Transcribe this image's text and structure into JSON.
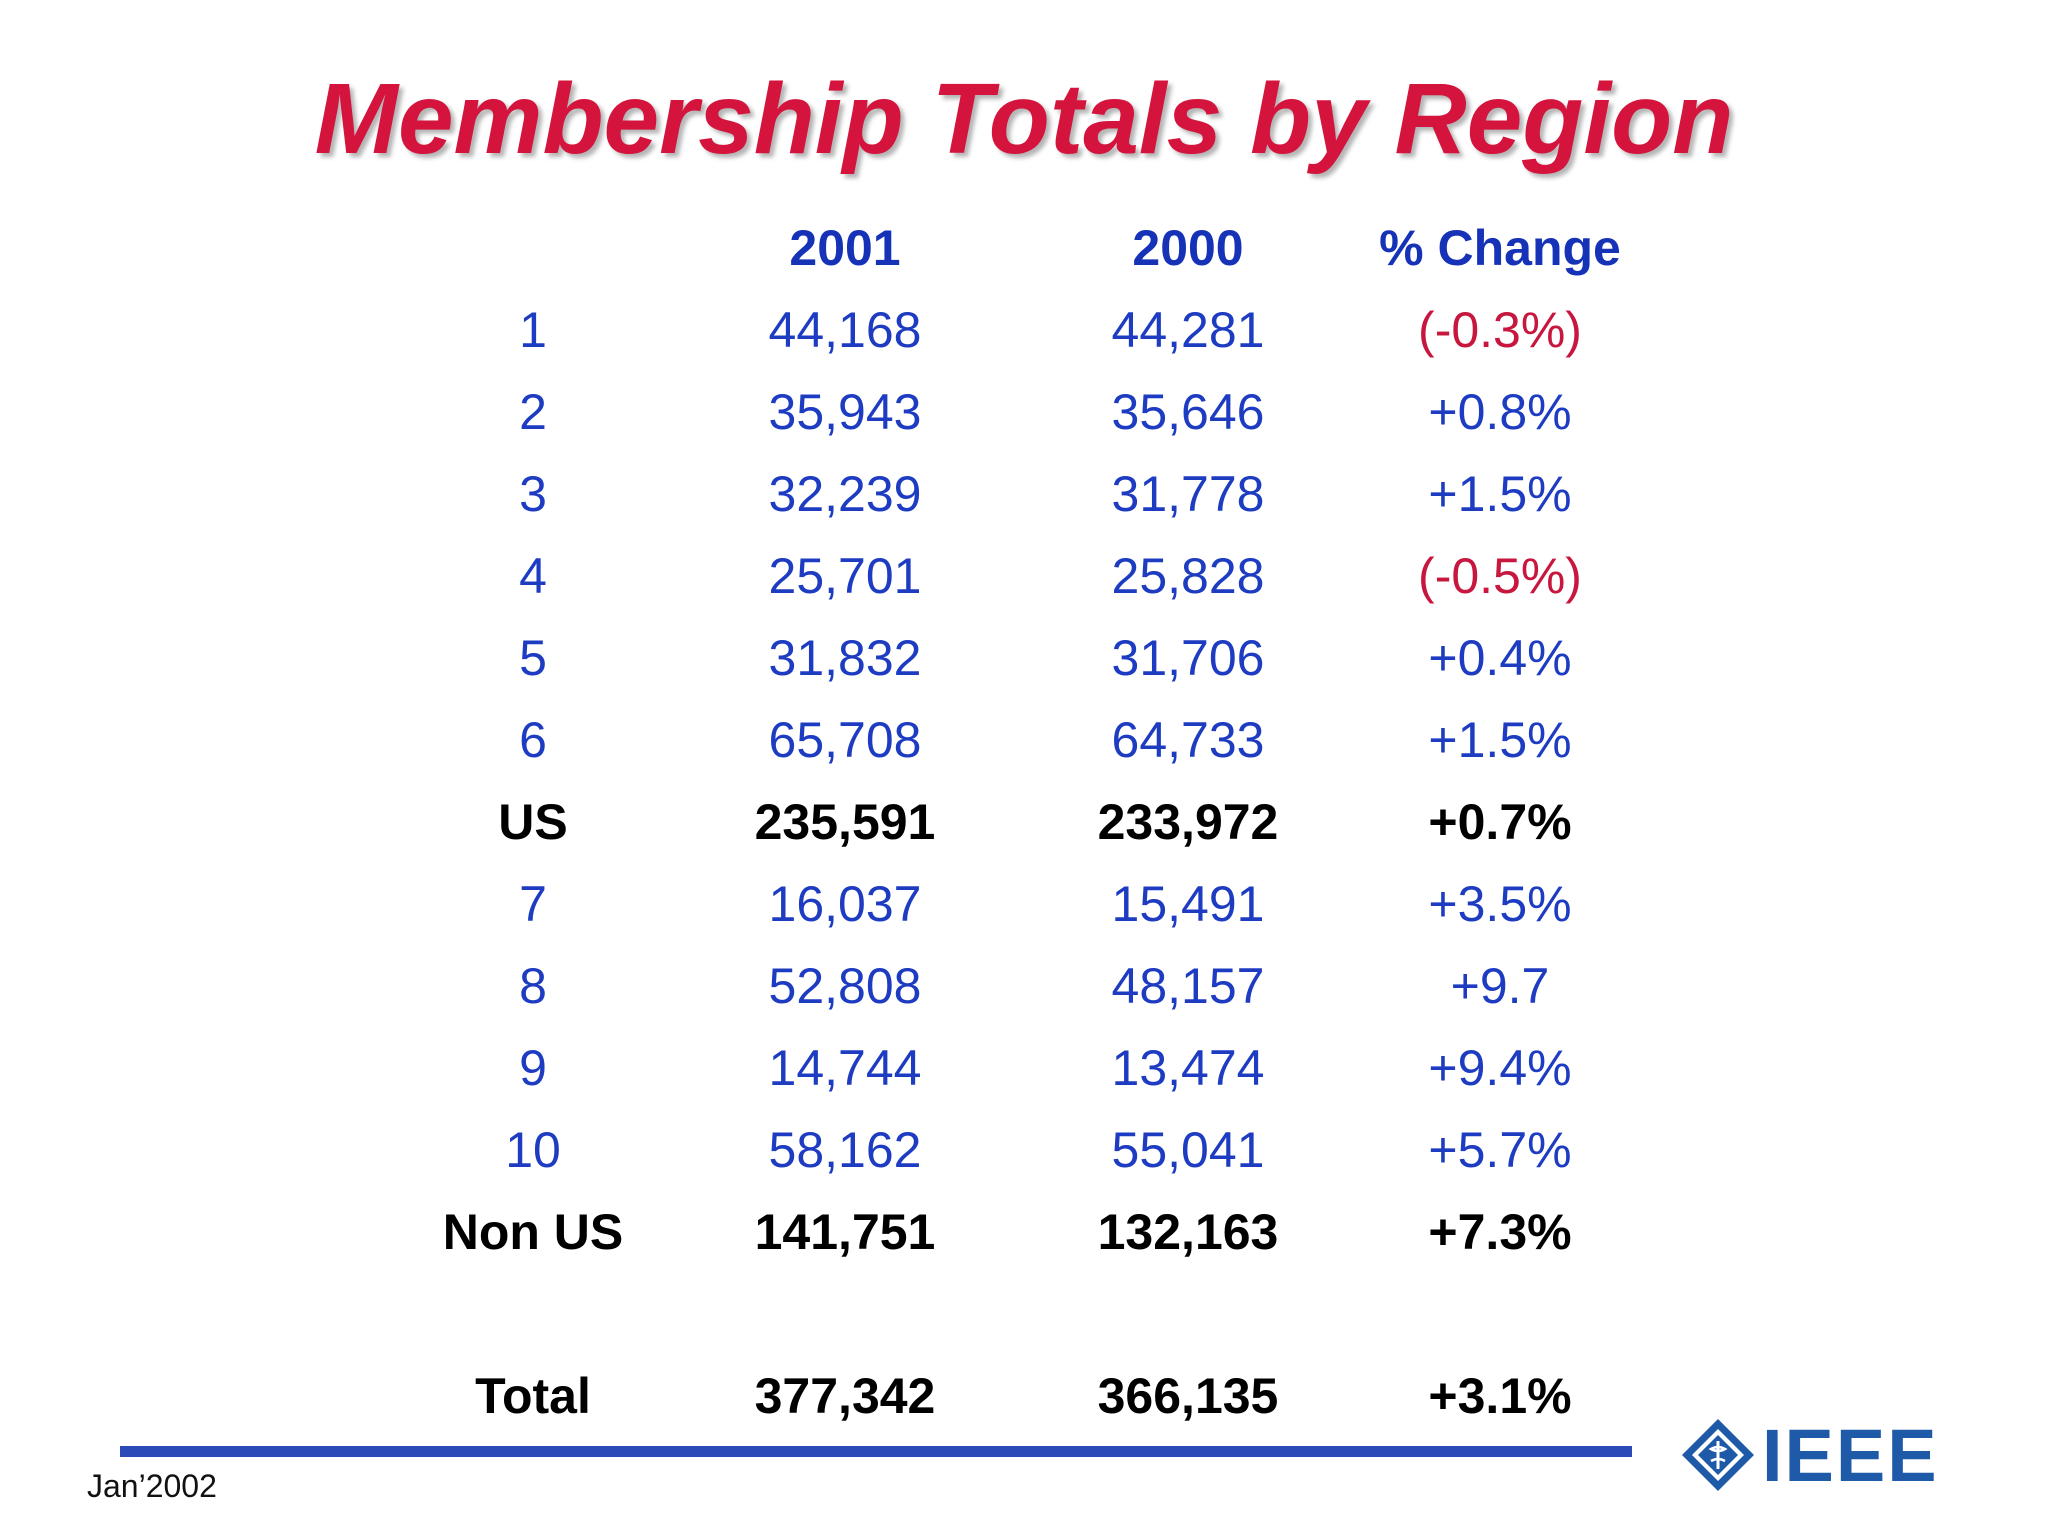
{
  "title": "Membership Totals by Region",
  "colors": {
    "title": "#d4143c",
    "header": "#1633b8",
    "value_blue": "#1e3cc2",
    "negative_red": "#c8173f",
    "subtotal_black": "#000000",
    "rule": "#2c4bb8",
    "logo": "#1f5aa8"
  },
  "table": {
    "headers": [
      "",
      "2001",
      "2000",
      "% Change"
    ],
    "rows": [
      {
        "region": "1",
        "y2001": "44,168",
        "y2000": "44,281",
        "change": "(-0.3%)",
        "style": "blue",
        "change_style": "red"
      },
      {
        "region": "2",
        "y2001": "35,943",
        "y2000": "35,646",
        "change": "+0.8%",
        "style": "blue",
        "change_style": "blue"
      },
      {
        "region": "3",
        "y2001": "32,239",
        "y2000": "31,778",
        "change": "+1.5%",
        "style": "blue",
        "change_style": "blue"
      },
      {
        "region": "4",
        "y2001": "25,701",
        "y2000": "25,828",
        "change": "(-0.5%)",
        "style": "blue",
        "change_style": "red"
      },
      {
        "region": "5",
        "y2001": "31,832",
        "y2000": "31,706",
        "change": "+0.4%",
        "style": "blue",
        "change_style": "blue"
      },
      {
        "region": "6",
        "y2001": "65,708",
        "y2000": "64,733",
        "change": "+1.5%",
        "style": "blue",
        "change_style": "blue"
      },
      {
        "region": "US",
        "y2001": "235,591",
        "y2000": "233,972",
        "change": "+0.7%",
        "style": "bold-black",
        "change_style": "bold-black"
      },
      {
        "region": "7",
        "y2001": "16,037",
        "y2000": "15,491",
        "change": "+3.5%",
        "style": "blue",
        "change_style": "blue"
      },
      {
        "region": "8",
        "y2001": "52,808",
        "y2000": "48,157",
        "change": "+9.7",
        "style": "blue",
        "change_style": "blue"
      },
      {
        "region": "9",
        "y2001": "14,744",
        "y2000": "13,474",
        "change": "+9.4%",
        "style": "blue",
        "change_style": "blue"
      },
      {
        "region": "10",
        "y2001": "58,162",
        "y2000": "55,041",
        "change": "+5.7%",
        "style": "blue",
        "change_style": "blue"
      },
      {
        "region": "Non US",
        "y2001": "141,751",
        "y2000": "132,163",
        "change": "+7.3%",
        "style": "bold-black",
        "change_style": "bold-black"
      },
      {
        "region": "Total",
        "y2001": "377,342",
        "y2000": "366,135",
        "change": "+3.1%",
        "style": "bold-black",
        "change_style": "bold-black"
      }
    ]
  },
  "footer": {
    "date": "Jan’2002"
  },
  "logo": {
    "icon": "ieee-diamond-icon",
    "text": "IEEE"
  }
}
